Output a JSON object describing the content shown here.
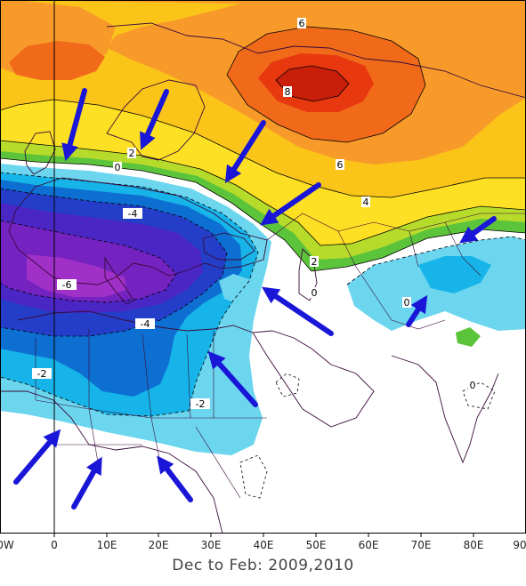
{
  "caption": "Dec to Feb: 2009,2010",
  "axis": {
    "x_tick_labels": [
      "0W",
      "0",
      "10E",
      "20E",
      "30E",
      "40E",
      "50E",
      "60E",
      "70E",
      "80E",
      "90"
    ]
  },
  "contour_labels": [
    "6",
    "8",
    "6",
    "4",
    "2",
    "2",
    "0",
    "0",
    "-4",
    "-6",
    "-4",
    "-2",
    "-2",
    "0",
    "0"
  ],
  "colors": {
    "pos_8": "#c81e0a",
    "pos_7": "#e8380f",
    "pos_6": "#f06a1a",
    "pos_5": "#f79a2a",
    "pos_4": "#fbc419",
    "pos_3": "#fde023",
    "pos_2": "#b7db2b",
    "pos_1": "#5cc43a",
    "neg_1": "#6cd6ef",
    "neg_2": "#16b4e8",
    "neg_3": "#0d6fd1",
    "neg_4": "#243ec9",
    "neg_5": "#4a26c4",
    "neg_6": "#7422c0",
    "neg_7": "#a030c8",
    "arrow": "#1a16d8"
  }
}
